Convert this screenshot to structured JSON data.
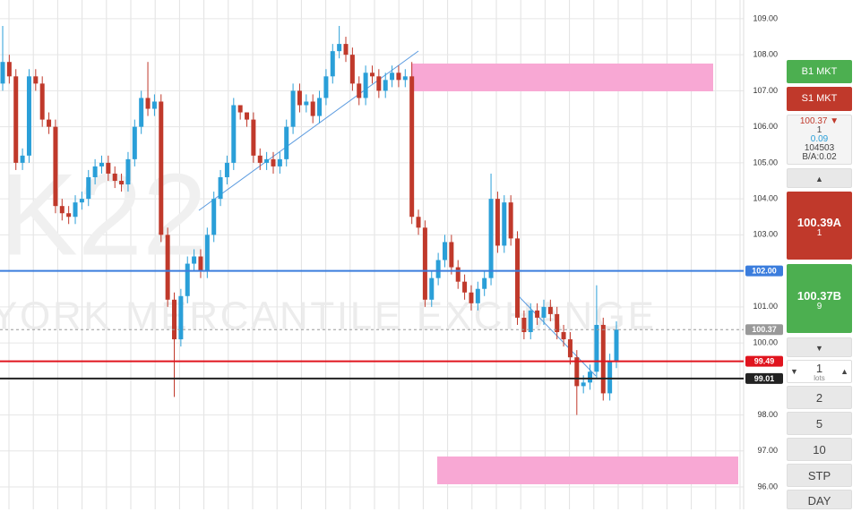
{
  "chart_data": {
    "type": "candlestick",
    "watermark": [
      "K22",
      "YORK MERCANTILE EXCHANGE"
    ],
    "up_color": "#2a9fd8",
    "down_color": "#c0392b",
    "open": [
      107.2,
      107.8,
      107.4,
      105.0,
      105.2,
      107.4,
      107.2,
      106.2,
      106.0,
      103.8,
      103.6,
      103.5,
      103.9,
      104.0,
      104.6,
      104.9,
      105.0,
      104.7,
      104.5,
      104.4,
      105.1,
      106.0,
      106.8,
      106.5,
      106.7,
      103.0,
      101.2,
      100.1,
      101.3,
      102.2,
      102.4,
      102.0,
      103.0,
      104.0,
      104.6,
      105.0,
      106.6,
      106.4,
      106.2,
      105.2,
      105.0,
      105.1,
      104.9,
      105.1,
      106.0,
      107.0,
      106.6,
      106.7,
      106.3,
      106.8,
      107.4,
      108.1,
      108.3,
      108.0,
      107.2,
      106.8,
      107.5,
      107.4,
      107.0,
      107.3,
      107.5,
      107.3,
      107.4,
      103.5,
      103.2,
      101.2,
      101.8,
      102.3,
      102.8,
      102.1,
      101.7,
      101.4,
      101.1,
      101.5,
      101.8,
      104.0,
      102.7,
      103.9,
      102.9,
      100.7,
      100.3,
      100.9,
      100.7,
      101.0,
      100.8,
      100.3,
      100.1,
      99.6,
      98.8,
      98.9,
      99.2,
      100.5,
      98.6,
      99.5
    ],
    "high": [
      108.8,
      108.0,
      107.6,
      105.4,
      107.6,
      107.6,
      107.4,
      106.4,
      106.2,
      104.0,
      103.8,
      104.1,
      104.2,
      104.8,
      105.1,
      105.2,
      105.2,
      104.9,
      104.7,
      105.3,
      106.2,
      107.0,
      107.8,
      106.9,
      106.9,
      103.2,
      101.4,
      101.5,
      102.4,
      102.6,
      102.6,
      103.2,
      104.2,
      104.8,
      105.2,
      106.8,
      106.6,
      106.4,
      106.4,
      105.4,
      105.3,
      105.3,
      105.3,
      106.2,
      107.2,
      107.2,
      106.9,
      106.9,
      107.0,
      107.6,
      108.3,
      108.8,
      108.5,
      108.2,
      107.4,
      107.7,
      107.7,
      107.6,
      107.5,
      107.7,
      107.7,
      107.6,
      107.8,
      103.7,
      103.4,
      102.0,
      102.5,
      103.0,
      103.0,
      102.3,
      101.9,
      101.6,
      101.7,
      102.0,
      104.7,
      104.2,
      104.1,
      104.1,
      103.1,
      100.9,
      101.1,
      101.1,
      101.2,
      101.2,
      101.0,
      100.5,
      100.3,
      99.8,
      99.1,
      99.4,
      101.6,
      100.7,
      99.7,
      100.6
    ],
    "low": [
      107.0,
      107.2,
      104.8,
      104.8,
      105.0,
      107.0,
      106.0,
      105.8,
      103.6,
      103.4,
      103.3,
      103.3,
      103.7,
      103.8,
      104.4,
      104.7,
      104.5,
      104.3,
      104.2,
      104.2,
      104.9,
      105.8,
      106.3,
      106.3,
      102.8,
      101.0,
      98.5,
      99.9,
      101.1,
      102.0,
      101.8,
      101.8,
      102.8,
      103.8,
      104.4,
      104.8,
      106.2,
      106.0,
      105.0,
      104.8,
      104.8,
      104.7,
      104.7,
      104.9,
      105.8,
      106.4,
      106.4,
      106.1,
      106.1,
      106.6,
      107.2,
      107.9,
      107.8,
      107.0,
      106.6,
      106.6,
      107.2,
      106.8,
      106.8,
      107.1,
      107.1,
      107.1,
      103.3,
      103.0,
      101.0,
      101.0,
      101.6,
      102.1,
      101.9,
      101.5,
      101.2,
      100.9,
      100.9,
      101.3,
      101.6,
      102.5,
      102.5,
      102.7,
      100.5,
      100.1,
      100.1,
      100.5,
      100.5,
      100.6,
      100.1,
      99.9,
      99.4,
      98.0,
      98.6,
      98.7,
      99.0,
      98.4,
      98.4,
      99.3
    ],
    "close": [
      107.8,
      107.4,
      105.0,
      105.2,
      107.4,
      107.2,
      106.2,
      106.0,
      103.8,
      103.6,
      103.5,
      103.9,
      104.0,
      104.6,
      104.9,
      105.0,
      104.7,
      104.5,
      104.4,
      105.1,
      106.0,
      106.8,
      106.5,
      106.7,
      103.0,
      101.2,
      100.1,
      101.3,
      102.2,
      102.4,
      102.0,
      103.0,
      104.0,
      104.6,
      105.0,
      106.6,
      106.4,
      106.2,
      105.2,
      105.0,
      105.1,
      104.9,
      105.1,
      106.0,
      107.0,
      106.6,
      106.7,
      106.3,
      106.8,
      107.4,
      108.1,
      108.3,
      108.0,
      107.2,
      106.8,
      107.5,
      107.4,
      107.0,
      107.3,
      107.5,
      107.3,
      107.4,
      103.5,
      103.2,
      101.2,
      101.8,
      102.3,
      102.8,
      102.1,
      101.7,
      101.4,
      101.1,
      101.5,
      101.8,
      104.0,
      102.7,
      103.9,
      102.9,
      100.7,
      100.3,
      100.9,
      100.7,
      101.0,
      100.8,
      100.3,
      100.1,
      99.6,
      98.8,
      98.9,
      99.2,
      100.5,
      98.6,
      99.5,
      100.37
    ],
    "ylim": [
      95.38,
      109.52
    ],
    "yticks": [
      {
        "value": 96,
        "label": "96.00"
      },
      {
        "value": 97,
        "label": "97.00"
      },
      {
        "value": 98,
        "label": "98.00"
      },
      {
        "value": 99,
        "label": "99.00"
      },
      {
        "value": 100,
        "label": "100.00"
      },
      {
        "value": 101,
        "label": "101.00"
      },
      {
        "value": 102,
        "label": "102.00"
      },
      {
        "value": 103,
        "label": "103.00"
      },
      {
        "value": 104,
        "label": "104.00"
      },
      {
        "value": 105,
        "label": "105.00"
      },
      {
        "value": 106,
        "label": "106.00"
      },
      {
        "value": 107,
        "label": "107.00"
      },
      {
        "value": 108,
        "label": "108.00"
      },
      {
        "value": 109,
        "label": "109.00"
      }
    ],
    "grid": true,
    "levels": [
      {
        "value": 102,
        "label": "102.00",
        "color": "#3b7ddd",
        "dashed": false
      },
      {
        "value": 100.37,
        "label": "100.37",
        "color": "#999999",
        "dashed": true
      },
      {
        "value": 99.49,
        "label": "99.49",
        "color": "#e0141e",
        "dashed": false
      },
      {
        "value": 99.01,
        "label": "99.01",
        "color": "#222222",
        "dashed": false
      }
    ]
  },
  "panel": {
    "buy_market": "B1 MKT",
    "sell_market": "S1 MKT",
    "info": [
      "100.37",
      "1",
      "0.09",
      "104503",
      "B/A:0.02"
    ],
    "ask": {
      "price": "100.39A",
      "size": "1"
    },
    "bid": {
      "price": "100.37B",
      "size": "9"
    },
    "quantity": {
      "value": "1",
      "unit": "lots"
    },
    "presets": [
      "2",
      "5",
      "10"
    ],
    "order_type": "STP",
    "duration": "DAY"
  }
}
